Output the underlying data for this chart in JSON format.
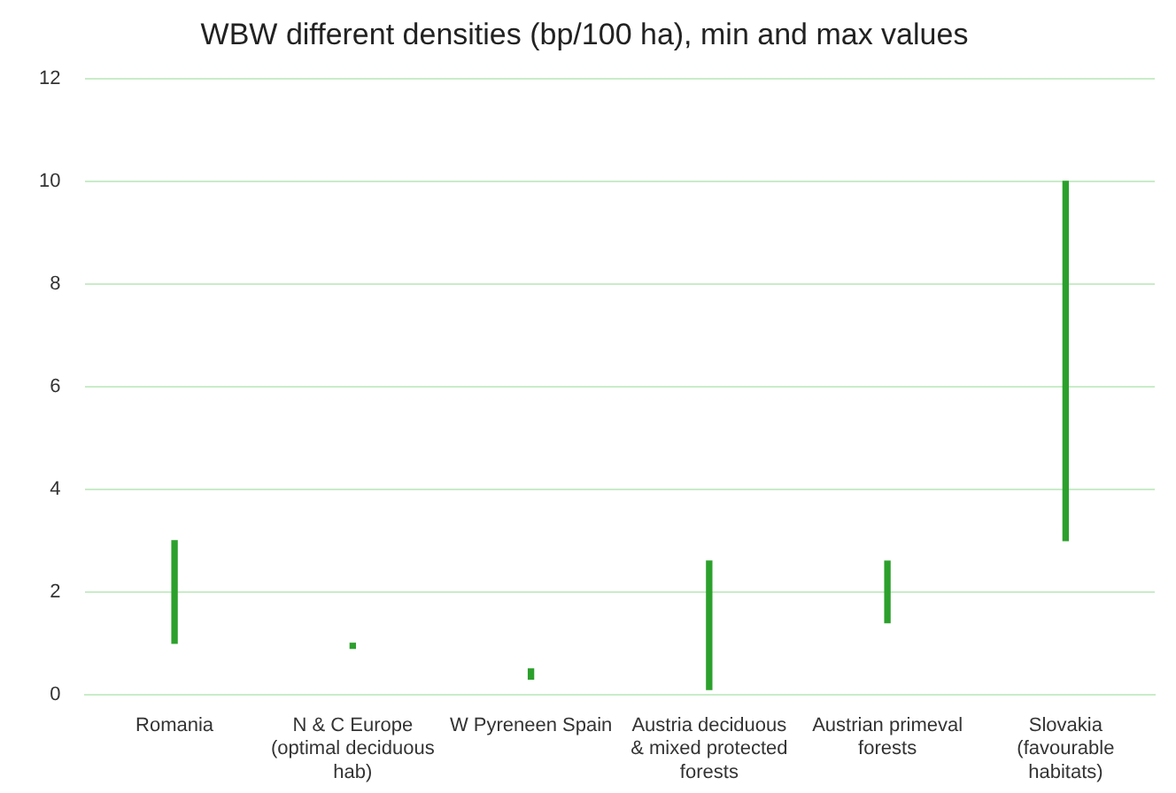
{
  "chart_data": {
    "type": "bar",
    "title": "WBW different densities (bp/100 ha), min and max values",
    "categories": [
      "Romania",
      "N & C Europe (optimal deciduous hab)",
      "W Pyreneen Spain",
      "Austria deciduous & mixed protected forests",
      "Austrian primeval forests",
      "Slovakia (favourable habitats)"
    ],
    "base": [
      1,
      0.9,
      0.3,
      0.1,
      1.4,
      3
    ],
    "values": [
      2,
      0.1,
      0.2,
      2.5,
      1.2,
      7
    ],
    "color": "#2ca02c",
    "ylim": [
      0,
      12
    ],
    "yticks": [
      0,
      2,
      4,
      6,
      8,
      10,
      12
    ],
    "grid": "y"
  }
}
